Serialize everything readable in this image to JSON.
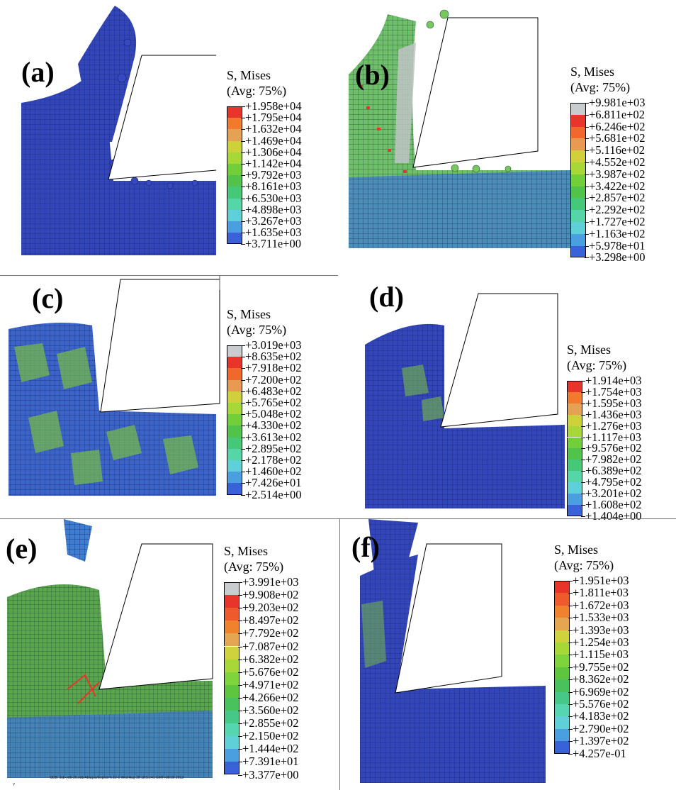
{
  "panels": [
    {
      "id": "a",
      "label": "(a)",
      "legend_title": "S, Mises",
      "legend_avg": "(Avg: 75%)",
      "values": [
        "+1.958e+04",
        "+1.795e+04",
        "+1.632e+04",
        "+1.469e+04",
        "+1.306e+04",
        "+1.142e+04",
        "+9.792e+03",
        "+8.161e+03",
        "+6.530e+03",
        "+4.898e+03",
        "+3.267e+03",
        "+1.635e+03",
        "+3.711e+00"
      ],
      "colors": [
        "#e8342a",
        "#f17a2c",
        "#e5a154",
        "#cdd23a",
        "#a8d838",
        "#72cf3a",
        "#52c34a",
        "#45c878",
        "#56d6a8",
        "#5fcfd8",
        "#4a9fe0",
        "#3a62d8"
      ]
    },
    {
      "id": "b",
      "label": "(b)",
      "legend_title": "S, Mises",
      "legend_avg": "(Avg: 75%)",
      "values": [
        "+9.981e+03",
        "+6.811e+02",
        "+6.246e+02",
        "+5.681e+02",
        "+5.116e+02",
        "+4.552e+02",
        "+3.987e+02",
        "+3.422e+02",
        "+2.857e+02",
        "+2.292e+02",
        "+1.727e+02",
        "+1.163e+02",
        "+5.978e+01",
        "+3.298e+00"
      ],
      "colors": [
        "#c8ccce",
        "#e8342a",
        "#f0682c",
        "#e89a52",
        "#d2cf3c",
        "#a8d838",
        "#72cf3a",
        "#52c34a",
        "#45c878",
        "#56d6a8",
        "#5fcfd8",
        "#4a9fe0",
        "#3a62d8"
      ]
    },
    {
      "id": "c",
      "label": "(c)",
      "legend_title": "S, Mises",
      "legend_avg": "(Avg: 75%)",
      "values": [
        "+3.019e+03",
        "+8.635e+02",
        "+7.918e+02",
        "+7.200e+02",
        "+6.483e+02",
        "+5.765e+02",
        "+5.048e+02",
        "+4.330e+02",
        "+3.613e+02",
        "+2.895e+02",
        "+2.178e+02",
        "+1.460e+02",
        "+7.426e+01",
        "+2.514e+00"
      ],
      "colors": [
        "#c8ccce",
        "#e8342a",
        "#f0682c",
        "#e89a52",
        "#d2cf3c",
        "#a8d838",
        "#72cf3a",
        "#52c34a",
        "#45c878",
        "#56d6a8",
        "#5fcfd8",
        "#4a9fe0",
        "#3a62d8"
      ]
    },
    {
      "id": "d",
      "label": "(d)",
      "legend_title": "S, Mises",
      "legend_avg": "(Avg: 75%)",
      "values": [
        "+1.914e+03",
        "+1.754e+03",
        "+1.595e+03",
        "+1.436e+03",
        "+1.276e+03",
        "+1.117e+03",
        "+9.576e+02",
        "+7.982e+02",
        "+6.389e+02",
        "+4.795e+02",
        "+3.201e+02",
        "+1.608e+02",
        "+1.404e+00"
      ],
      "colors": [
        "#e8342a",
        "#f17a2c",
        "#e5a154",
        "#cdd23a",
        "#a8d838",
        "#72cf3a",
        "#52c34a",
        "#45c878",
        "#56d6a8",
        "#5fcfd8",
        "#4a9fe0",
        "#3a62d8"
      ]
    },
    {
      "id": "e",
      "label": "(e)",
      "legend_title": "S, Mises",
      "legend_avg": "(Avg: 75%)",
      "values": [
        "+3.991e+03",
        "+9.908e+02",
        "+9.203e+02",
        "+8.497e+02",
        "+7.792e+02",
        "+7.087e+02",
        "+6.382e+02",
        "+5.676e+02",
        "+4.971e+02",
        "+4.266e+02",
        "+3.560e+02",
        "+2.855e+02",
        "+2.150e+02",
        "+1.444e+02",
        "+7.391e+01",
        "+3.377e+00"
      ],
      "colors": [
        "#c8ccce",
        "#e8342a",
        "#ee5a2c",
        "#f0822e",
        "#e4a650",
        "#cfd23c",
        "#a8d838",
        "#7ed43a",
        "#5ec63e",
        "#49c25e",
        "#45c888",
        "#56d6b0",
        "#5fcfd8",
        "#4a9fe0",
        "#3a62d8"
      ]
    },
    {
      "id": "f",
      "label": "(f)",
      "legend_title": "S, Mises",
      "legend_avg": "(Avg: 75%)",
      "values": [
        "+1.951e+03",
        "+1.811e+03",
        "+1.672e+03",
        "+1.533e+03",
        "+1.393e+03",
        "+1.254e+03",
        "+1.115e+03",
        "+9.755e+02",
        "+8.362e+02",
        "+6.969e+02",
        "+5.576e+02",
        "+4.183e+02",
        "+2.790e+02",
        "+1.397e+02",
        "+4.257e-01"
      ],
      "colors": [
        "#e8342a",
        "#ee5a2c",
        "#f0822e",
        "#e4a650",
        "#cfd23c",
        "#a8d838",
        "#7ed43a",
        "#5ec63e",
        "#49c25e",
        "#45c888",
        "#56d6b0",
        "#5fcfd8",
        "#4a9fe0",
        "#3a62d8"
      ]
    }
  ],
  "footnote": "ODB: Job-yd6-20.odb    Abaqus/Explicit 6.12-1    Wed Aug 28 18:51:41 GMT+08:00 2013",
  "footnote_axis": "Y"
}
